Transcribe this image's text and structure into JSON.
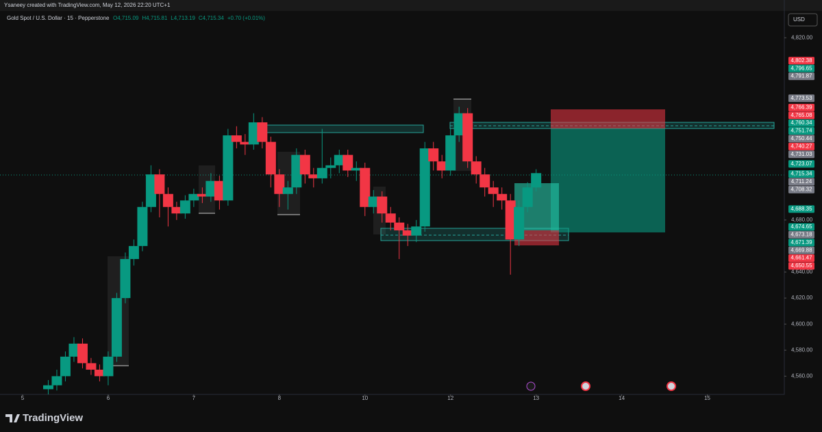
{
  "attribution": "Ysaneey created with TradingView.com, May 12, 2026 22:20 UTC+1",
  "currency": "USD",
  "brand": "TradingView",
  "chart_data": {
    "type": "candlestick",
    "title": "Gold Spot / U.S. Dollar · 15 · Pepperstone",
    "ohlc": [
      "O4,715.09",
      "H4,715.81",
      "L4,713.19",
      "C4,715.34",
      "+0.70 (+0.01%)"
    ],
    "up_color": "#089981",
    "down_color": "#f23645",
    "x": [
      0.3,
      0.4,
      0.5,
      0.6,
      0.7,
      0.8,
      0.9,
      1.0,
      1.1,
      1.2,
      1.3,
      1.4,
      1.5,
      1.6,
      1.7,
      1.8,
      1.9,
      2.0,
      2.1,
      2.2,
      2.3,
      2.4,
      2.5,
      2.6,
      2.7,
      2.8,
      2.9,
      3.0,
      3.1,
      3.2,
      3.3,
      3.4,
      3.5,
      3.6,
      3.7,
      3.8,
      3.9,
      4.0,
      4.1,
      4.2,
      4.3,
      4.4,
      4.5,
      4.6,
      4.7,
      4.8,
      4.9,
      5.0,
      5.1,
      5.2,
      5.3,
      5.4,
      5.5,
      5.6,
      5.7,
      5.8,
      5.9,
      6.0
    ],
    "open": [
      4550,
      4553,
      4560,
      4575,
      4585,
      4570,
      4565,
      4560,
      4575,
      4620,
      4650,
      4660,
      4690,
      4715,
      4700,
      4690,
      4685,
      4695,
      4700,
      4698,
      4710,
      4695,
      4745,
      4740,
      4738,
      4755,
      4740,
      4715,
      4700,
      4705,
      4730,
      4715,
      4712,
      4720,
      4722,
      4730,
      4718,
      4720,
      4690,
      4698,
      4685,
      4678,
      4672,
      4668,
      4675,
      4735,
      4725,
      4718,
      4745,
      4762,
      4725,
      4715,
      4705,
      4700,
      4695,
      4665,
      4690,
      4705
    ],
    "high": [
      4557,
      4565,
      4579,
      4590,
      4589,
      4574,
      4569,
      4579,
      4624,
      4655,
      4665,
      4694,
      4722,
      4719,
      4705,
      4694,
      4699,
      4704,
      4705,
      4716,
      4714,
      4750,
      4752,
      4746,
      4762,
      4759,
      4744,
      4719,
      4710,
      4735,
      4734,
      4720,
      4750,
      4728,
      4734,
      4734,
      4725,
      4724,
      4703,
      4702,
      4690,
      4682,
      4677,
      4680,
      4740,
      4740,
      4730,
      4750,
      4767,
      4766,
      4729,
      4720,
      4710,
      4705,
      4700,
      4695,
      4709,
      4719
    ],
    "low": [
      4546,
      4549,
      4556,
      4571,
      4566,
      4561,
      4556,
      4553,
      4571,
      4616,
      4645,
      4656,
      4686,
      4682,
      4675,
      4680,
      4681,
      4690,
      4693,
      4694,
      4688,
      4691,
      4735,
      4730,
      4734,
      4735,
      4705,
      4690,
      4688,
      4700,
      4708,
      4705,
      4708,
      4712,
      4716,
      4713,
      4710,
      4683,
      4685,
      4678,
      4672,
      4650,
      4660,
      4663,
      4671,
      4718,
      4712,
      4714,
      4740,
      4720,
      4708,
      4698,
      4690,
      4688,
      4638,
      4660,
      4686,
      4702
    ],
    "close": [
      4553,
      4560,
      4575,
      4585,
      4570,
      4565,
      4560,
      4575,
      4620,
      4650,
      4660,
      4690,
      4715,
      4700,
      4690,
      4685,
      4695,
      4700,
      4698,
      4710,
      4695,
      4745,
      4740,
      4738,
      4755,
      4740,
      4715,
      4700,
      4705,
      4730,
      4715,
      4712,
      4720,
      4722,
      4730,
      4718,
      4720,
      4690,
      4698,
      4685,
      4678,
      4672,
      4668,
      4675,
      4735,
      4725,
      4718,
      4745,
      4762,
      4725,
      4715,
      4705,
      4700,
      4695,
      4665,
      4690,
      4705,
      4716
    ],
    "xlim": [
      -0.264,
      8.9
    ],
    "xticks": [
      {
        "value": 0,
        "label": "5"
      },
      {
        "value": 1,
        "label": "6"
      },
      {
        "value": 2,
        "label": "7"
      },
      {
        "value": 3,
        "label": "8"
      },
      {
        "value": 4,
        "label": "10"
      },
      {
        "value": 5,
        "label": "12"
      },
      {
        "value": 6,
        "label": "13"
      },
      {
        "value": 7,
        "label": "14"
      },
      {
        "value": 8,
        "label": "15"
      }
    ],
    "ylim": [
      4546,
      4849
    ],
    "yticks": [
      {
        "value": 4820,
        "label": "4,820.00"
      },
      {
        "value": 4680,
        "label": "4,680.00"
      },
      {
        "value": 4640,
        "label": "4,640.00"
      },
      {
        "value": 4620,
        "label": "4,620.00"
      },
      {
        "value": 4600,
        "label": "4,600.00"
      },
      {
        "value": 4580,
        "label": "4,580.00"
      },
      {
        "value": 4560,
        "label": "4,560.00"
      }
    ],
    "price_labels": [
      {
        "value": 4802.38,
        "label": "4,802.38",
        "color": "#f23645"
      },
      {
        "value": 4796.65,
        "label": "4,796.65",
        "color": "#089981"
      },
      {
        "value": 4791.87,
        "label": "4,791.87",
        "color": "#787b86"
      },
      {
        "value": 4773.53,
        "label": "4,773.53",
        "color": "#787b86"
      },
      {
        "value": 4766.39,
        "label": "4,766.39",
        "color": "#f23645"
      },
      {
        "value": 4765.08,
        "label": "4,765.08",
        "color": "#f23645"
      },
      {
        "value": 4760.34,
        "label": "4,760.34",
        "color": "#089981"
      },
      {
        "value": 4751.74,
        "label": "4,751.74",
        "color": "#089981"
      },
      {
        "value": 4750.44,
        "label": "4,750.44",
        "color": "#787b86"
      },
      {
        "value": 4740.27,
        "label": "4,740.27",
        "color": "#f23645"
      },
      {
        "value": 4731.03,
        "label": "4,731.03",
        "color": "#787b86"
      },
      {
        "value": 4723.07,
        "label": "4,723.07",
        "color": "#089981"
      },
      {
        "value": 4715.34,
        "label": "4,715.34",
        "color": "#089981"
      },
      {
        "value": 4711.24,
        "label": "4,711.24",
        "color": "#787b86"
      },
      {
        "value": 4708.32,
        "label": "4,708.32",
        "color": "#787b86"
      },
      {
        "value": 4688.35,
        "label": "4,688.35",
        "color": "#089981"
      },
      {
        "value": 4674.65,
        "label": "4,674.65",
        "color": "#089981"
      },
      {
        "value": 4673.18,
        "label": "4,673.18",
        "color": "#787b86"
      },
      {
        "value": 4671.39,
        "label": "4,671.39",
        "color": "#089981"
      },
      {
        "value": 4669.88,
        "label": "4,669.88",
        "color": "#787b86"
      },
      {
        "value": 4661.47,
        "label": "4,661.47",
        "color": "#f23645"
      },
      {
        "value": 4650.55,
        "label": "4,650.55",
        "color": "#f23645"
      }
    ]
  }
}
